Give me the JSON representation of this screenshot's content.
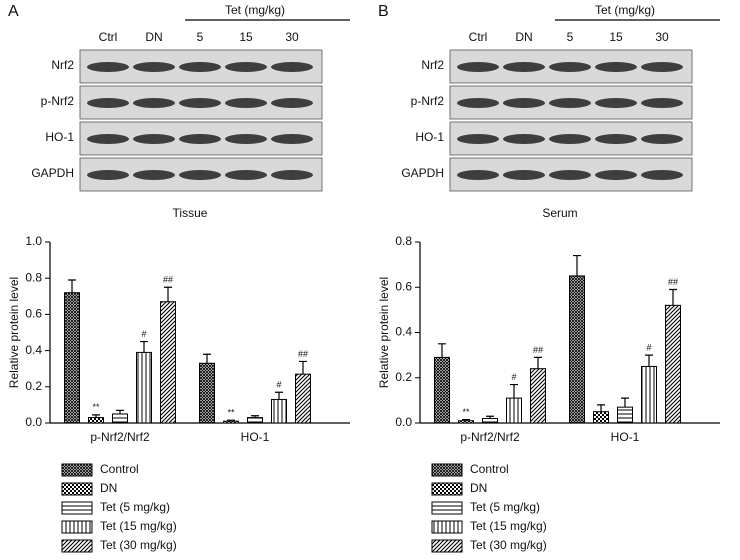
{
  "panels": [
    {
      "label": "A",
      "treatment": "Tet (mg/kg)",
      "lanes": [
        "Ctrl",
        "DN",
        "5",
        "15",
        "30"
      ],
      "rows": [
        "Nrf2",
        "p-Nrf2",
        "HO-1",
        "GAPDH"
      ],
      "caption": "Tissue"
    },
    {
      "label": "B",
      "treatment": "Tet (mg/kg)",
      "lanes": [
        "Ctrl",
        "DN",
        "5",
        "15",
        "30"
      ],
      "rows": [
        "Nrf2",
        "p-Nrf2",
        "HO-1",
        "GAPDH"
      ],
      "caption": "Serum"
    }
  ],
  "chart_data": [
    {
      "type": "bar",
      "ylabel": "Relative protein level",
      "categories": [
        "p-Nrf2/Nrf2",
        "HO-1"
      ],
      "ylim": [
        0,
        1.0
      ],
      "yticks": [
        {
          "value": 0,
          "label": "0.0"
        },
        0.2,
        0.4,
        0.6,
        0.8,
        {
          "value": 1.0,
          "label": "1.0"
        }
      ],
      "series": [
        {
          "name": "Control",
          "pattern": "crosshatch",
          "color": "#000000",
          "values": [
            0.72,
            0.33
          ],
          "errors": [
            0.07,
            0.05
          ],
          "annotations": [
            null,
            null
          ]
        },
        {
          "name": "DN",
          "pattern": "checker",
          "color": "#000000",
          "values": [
            0.03,
            0.01
          ],
          "errors": [
            0.015,
            0.005
          ],
          "annotations": [
            "**",
            "**"
          ]
        },
        {
          "name": "Tet (5 mg/kg)",
          "pattern": "hlines",
          "color": "#000000",
          "values": [
            0.05,
            0.03
          ],
          "errors": [
            0.02,
            0.01
          ],
          "annotations": [
            null,
            null
          ]
        },
        {
          "name": "Tet (15 mg/kg)",
          "pattern": "vlines",
          "color": "#000000",
          "values": [
            0.39,
            0.13
          ],
          "errors": [
            0.06,
            0.04
          ],
          "annotations": [
            "#",
            "#"
          ]
        },
        {
          "name": "Tet (30 mg/kg)",
          "pattern": "diag",
          "color": "#000000",
          "values": [
            0.67,
            0.27
          ],
          "errors": [
            0.08,
            0.07
          ],
          "annotations": [
            "##",
            "##"
          ]
        }
      ]
    },
    {
      "type": "bar",
      "ylabel": "Relative protein level",
      "categories": [
        "p-Nrf2/Nrf2",
        "HO-1"
      ],
      "ylim": [
        0,
        0.8
      ],
      "yticks": [
        {
          "value": 0,
          "label": "0.0"
        },
        0.2,
        0.4,
        0.6,
        0.8
      ],
      "series": [
        {
          "name": "Control",
          "pattern": "crosshatch",
          "color": "#000000",
          "values": [
            0.29,
            0.65
          ],
          "errors": [
            0.06,
            0.09
          ],
          "annotations": [
            null,
            null
          ]
        },
        {
          "name": "DN",
          "pattern": "checker",
          "color": "#000000",
          "values": [
            0.01,
            0.05
          ],
          "errors": [
            0.005,
            0.03
          ],
          "annotations": [
            "**",
            null
          ]
        },
        {
          "name": "Tet (5 mg/kg)",
          "pattern": "hlines",
          "color": "#000000",
          "values": [
            0.02,
            0.07
          ],
          "errors": [
            0.01,
            0.04
          ],
          "annotations": [
            null,
            null
          ]
        },
        {
          "name": "Tet (15 mg/kg)",
          "pattern": "vlines",
          "color": "#000000",
          "values": [
            0.11,
            0.25
          ],
          "errors": [
            0.06,
            0.05
          ],
          "annotations": [
            "#",
            "#"
          ]
        },
        {
          "name": "Tet (30 mg/kg)",
          "pattern": "diag",
          "color": "#000000",
          "values": [
            0.24,
            0.52
          ],
          "errors": [
            0.05,
            0.07
          ],
          "annotations": [
            "##",
            "##"
          ]
        }
      ]
    }
  ]
}
